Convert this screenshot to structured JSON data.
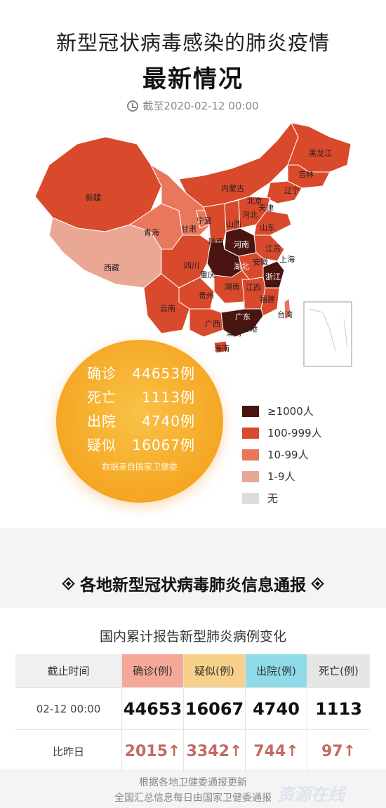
{
  "header": {
    "title_line1": "新型冠状病毒感染的肺炎疫情",
    "title_line2": "最新情况",
    "cutoff": "截至2020-02-12 00:00"
  },
  "map": {
    "provinces": [
      "新疆",
      "西藏",
      "青海",
      "甘肃",
      "宁夏",
      "内蒙古",
      "黑龙江",
      "吉林",
      "辽宁",
      "北京",
      "天津",
      "河北",
      "山西",
      "陕西",
      "山东",
      "河南",
      "湖北",
      "安徽",
      "江苏",
      "上海",
      "浙江",
      "四川",
      "重庆",
      "贵州",
      "湖南",
      "江西",
      "福建",
      "云南",
      "广西",
      "广东",
      "香港",
      "澳门",
      "台湾",
      "海南"
    ],
    "colors": {
      "ge1000": "#4a1510",
      "c100_999": "#d9492b",
      "c10_99": "#e8775c",
      "c1_9": "#eaa894",
      "none": "#dcdcdc"
    }
  },
  "stats": {
    "confirmed": {
      "label": "确诊",
      "value": "44653例"
    },
    "deaths": {
      "label": "死亡",
      "value": "1113例"
    },
    "recovered": {
      "label": "出院",
      "value": "4740例"
    },
    "suspected": {
      "label": "疑似",
      "value": "16067例"
    },
    "source": "数据来自国家卫健委"
  },
  "legend": [
    {
      "label": "≥1000人",
      "color": "#4a1510"
    },
    {
      "label": "100-999人",
      "color": "#d9492b"
    },
    {
      "label": "10-99人",
      "color": "#e8775c"
    },
    {
      "label": "1-9人",
      "color": "#eaa894"
    },
    {
      "label": "无",
      "color": "#dcdcdc"
    }
  ],
  "section_title": "各地新型冠状病毒肺炎信息通报",
  "table": {
    "title": "国内累计报告新型肺炎病例变化",
    "headers": [
      "截止时间",
      "确诊(例)",
      "疑似(例)",
      "出院(例)",
      "死亡(例)"
    ],
    "row_total": {
      "time": "02-12 00:00",
      "confirmed": "44653",
      "suspected": "16067",
      "recovered": "4740",
      "deaths": "1113"
    },
    "row_change": {
      "label": "比昨日",
      "confirmed": "2015↑",
      "suspected": "3342↑",
      "recovered": "744↑",
      "deaths": "97↑"
    }
  },
  "footer": {
    "line1": "根据各地卫健委通报更新",
    "line2": "全国汇总信息每日由国家卫健委通报"
  },
  "watermark": "资源在线"
}
